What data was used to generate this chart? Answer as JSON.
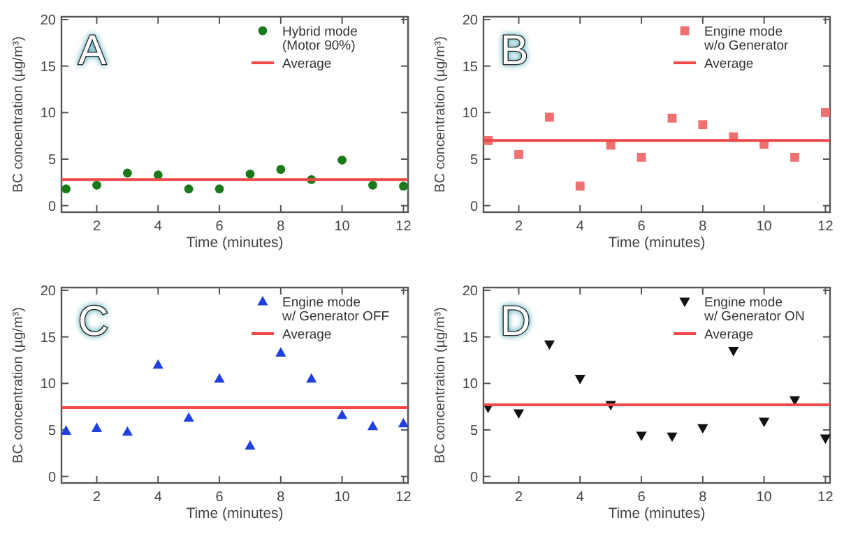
{
  "chart_data": [
    {
      "type": "scatter",
      "xlabel": "Time (minutes)",
      "ylabel": "BC concentration (µg/m³)",
      "annotations": [
        "A"
      ],
      "x": [
        1,
        2,
        3,
        4,
        5,
        6,
        7,
        8,
        9,
        10,
        11,
        12
      ],
      "xlim": [
        0.85,
        12.15
      ],
      "ylim": [
        -0.7,
        20.3
      ],
      "xticks": [
        2,
        4,
        6,
        8,
        10,
        12
      ],
      "yticks": [
        0,
        5,
        10,
        15,
        20
      ],
      "legend": "top right",
      "series": [
        {
          "name": "Hybrid mode\n(Motor 90%)",
          "color": "#1a7a1a",
          "marker": "circle",
          "values": [
            1.8,
            2.2,
            3.5,
            3.3,
            1.8,
            1.8,
            3.4,
            3.9,
            2.8,
            4.9,
            2.2,
            2.1
          ]
        }
      ],
      "ref_lines": [
        {
          "axis": "y",
          "value": 2.8,
          "label": "Average",
          "color": "#f04848"
        }
      ]
    },
    {
      "type": "scatter",
      "xlabel": "Time (minutes)",
      "ylabel": "BC concentration (µg/m³)",
      "annotations": [
        "B"
      ],
      "x": [
        1,
        2,
        3,
        4,
        5,
        6,
        7,
        8,
        9,
        10,
        11,
        12
      ],
      "xlim": [
        0.85,
        12.15
      ],
      "ylim": [
        -0.7,
        20.3
      ],
      "xticks": [
        2,
        4,
        6,
        8,
        10,
        12
      ],
      "yticks": [
        0,
        5,
        10,
        15,
        20
      ],
      "legend": "top right",
      "series": [
        {
          "name": "Engine mode\nw/o Generator",
          "color": "#f07070",
          "marker": "square",
          "values": [
            7.0,
            5.5,
            9.5,
            2.1,
            6.5,
            5.2,
            9.4,
            8.7,
            7.4,
            6.6,
            5.2,
            10.0
          ]
        }
      ],
      "ref_lines": [
        {
          "axis": "y",
          "value": 7.0,
          "label": "Average",
          "color": "#f04848"
        }
      ]
    },
    {
      "type": "scatter",
      "xlabel": "Time (minutes)",
      "ylabel": "BC concentration (µg/m³)",
      "annotations": [
        "C"
      ],
      "x": [
        1,
        2,
        3,
        4,
        5,
        6,
        7,
        8,
        9,
        10,
        11,
        12
      ],
      "xlim": [
        0.85,
        12.15
      ],
      "ylim": [
        -0.7,
        20.3
      ],
      "xticks": [
        2,
        4,
        6,
        8,
        10,
        12
      ],
      "yticks": [
        0,
        5,
        10,
        15,
        20
      ],
      "legend": "top right",
      "series": [
        {
          "name": "Engine mode\nw/ Generator OFF",
          "color": "#2040e0",
          "marker": "triangle",
          "values": [
            4.9,
            5.2,
            4.8,
            12.0,
            6.3,
            10.5,
            3.3,
            13.3,
            10.5,
            6.6,
            5.4,
            5.7
          ]
        }
      ],
      "ref_lines": [
        {
          "axis": "y",
          "value": 7.4,
          "label": "Average",
          "color": "#f04848"
        }
      ]
    },
    {
      "type": "scatter",
      "xlabel": "Time (minutes)",
      "ylabel": "BC concentration (µg/m³)",
      "annotations": [
        "D"
      ],
      "x": [
        1,
        2,
        3,
        4,
        5,
        6,
        7,
        8,
        9,
        10,
        11,
        12
      ],
      "xlim": [
        0.85,
        12.15
      ],
      "ylim": [
        -0.7,
        20.3
      ],
      "xticks": [
        2,
        4,
        6,
        8,
        10,
        12
      ],
      "yticks": [
        0,
        5,
        10,
        15,
        20
      ],
      "legend": "top right",
      "series": [
        {
          "name": "Engine mode\nw/ Generator ON",
          "color": "#111111",
          "marker": "triangle-down",
          "values": [
            7.4,
            6.8,
            14.2,
            10.5,
            7.7,
            4.4,
            4.3,
            5.2,
            13.5,
            5.9,
            8.2,
            4.1
          ]
        }
      ],
      "ref_lines": [
        {
          "axis": "y",
          "value": 7.7,
          "label": "Average",
          "color": "#f04848"
        }
      ]
    }
  ]
}
